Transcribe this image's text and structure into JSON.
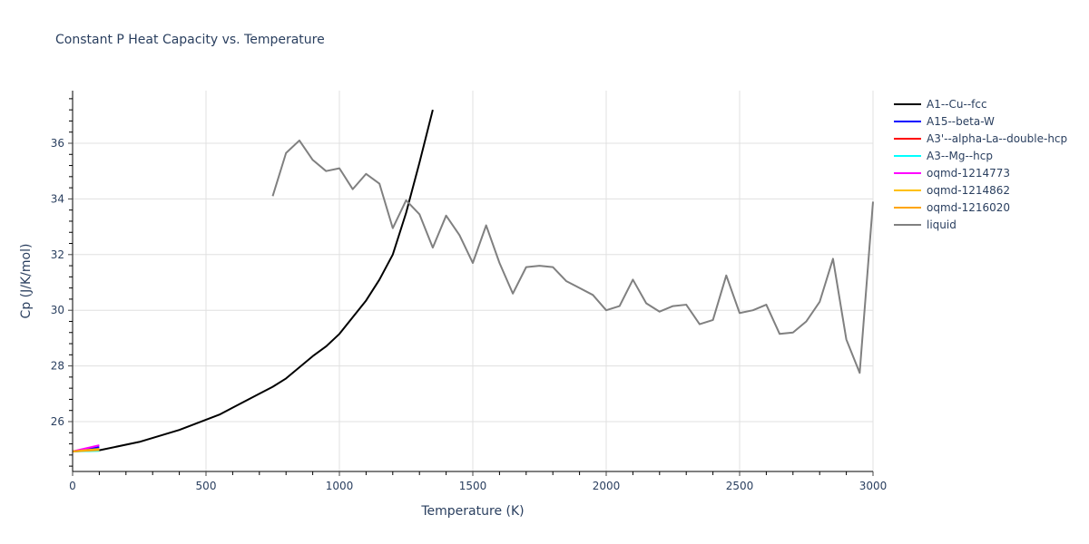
{
  "chart_data": {
    "type": "line",
    "title": "Constant P Heat Capacity vs. Temperature",
    "xlabel": "Temperature (K)",
    "ylabel": "Cp (J/K/mol)",
    "xlim": [
      0,
      3000
    ],
    "ylim": [
      24.3,
      37.9
    ],
    "x_ticks": [
      0,
      500,
      1000,
      1500,
      2000,
      2500,
      3000
    ],
    "y_ticks": [
      26,
      28,
      30,
      32,
      34,
      36
    ],
    "grid": true,
    "legend_position": "right",
    "series": [
      {
        "name": "A1--Cu--fcc",
        "color": "#000000",
        "x": [
          0,
          100,
          250,
          400,
          550,
          600,
          700,
          750,
          800,
          900,
          950,
          1000,
          1050,
          1100,
          1150,
          1200,
          1250,
          1300,
          1350
        ],
        "y": [
          24.93,
          24.97,
          25.27,
          25.7,
          26.25,
          26.5,
          27.0,
          27.25,
          27.55,
          28.35,
          28.7,
          29.15,
          29.75,
          30.35,
          31.1,
          32.0,
          33.5,
          35.3,
          37.2
        ]
      },
      {
        "name": "A15--beta-W",
        "color": "#0000ff",
        "x": [
          0,
          100
        ],
        "y": [
          24.93,
          25.08
        ]
      },
      {
        "name": "A3'--alpha-La--double-hcp",
        "color": "#ff0000",
        "x": [
          0,
          100
        ],
        "y": [
          24.93,
          25.0
        ]
      },
      {
        "name": "A3--Mg--hcp",
        "color": "#00ffff",
        "x": [
          0,
          100
        ],
        "y": [
          24.93,
          24.95
        ]
      },
      {
        "name": "oqmd-1214773",
        "color": "#ff00ff",
        "x": [
          0,
          100
        ],
        "y": [
          24.93,
          25.15
        ]
      },
      {
        "name": "oqmd-1214862",
        "color": "#ffc000",
        "x": [
          0,
          100
        ],
        "y": [
          24.93,
          25.02
        ]
      },
      {
        "name": "oqmd-1216020",
        "color": "#ffa500",
        "x": [
          0,
          100
        ],
        "y": [
          24.93,
          24.98
        ]
      },
      {
        "name": "liquid",
        "color": "#808080",
        "x": [
          750,
          800,
          850,
          900,
          950,
          1000,
          1050,
          1100,
          1150,
          1200,
          1250,
          1300,
          1350,
          1400,
          1450,
          1500,
          1550,
          1600,
          1650,
          1700,
          1750,
          1800,
          1850,
          1900,
          1950,
          2000,
          2050,
          2100,
          2150,
          2200,
          2250,
          2300,
          2350,
          2400,
          2450,
          2500,
          2550,
          2600,
          2650,
          2700,
          2750,
          2800,
          2850,
          2900,
          2950,
          3000
        ],
        "y": [
          34.1,
          35.65,
          36.1,
          35.4,
          35.0,
          35.1,
          34.35,
          34.9,
          34.55,
          32.95,
          33.95,
          33.45,
          32.25,
          33.4,
          32.7,
          31.7,
          33.05,
          31.7,
          30.6,
          31.55,
          31.6,
          31.55,
          31.05,
          30.8,
          30.55,
          30.0,
          30.15,
          31.1,
          30.25,
          29.95,
          30.15,
          30.2,
          29.5,
          29.65,
          31.25,
          29.9,
          30.0,
          30.2,
          29.15,
          29.2,
          29.6,
          30.3,
          31.85,
          28.95,
          27.75,
          33.9
        ]
      }
    ]
  }
}
